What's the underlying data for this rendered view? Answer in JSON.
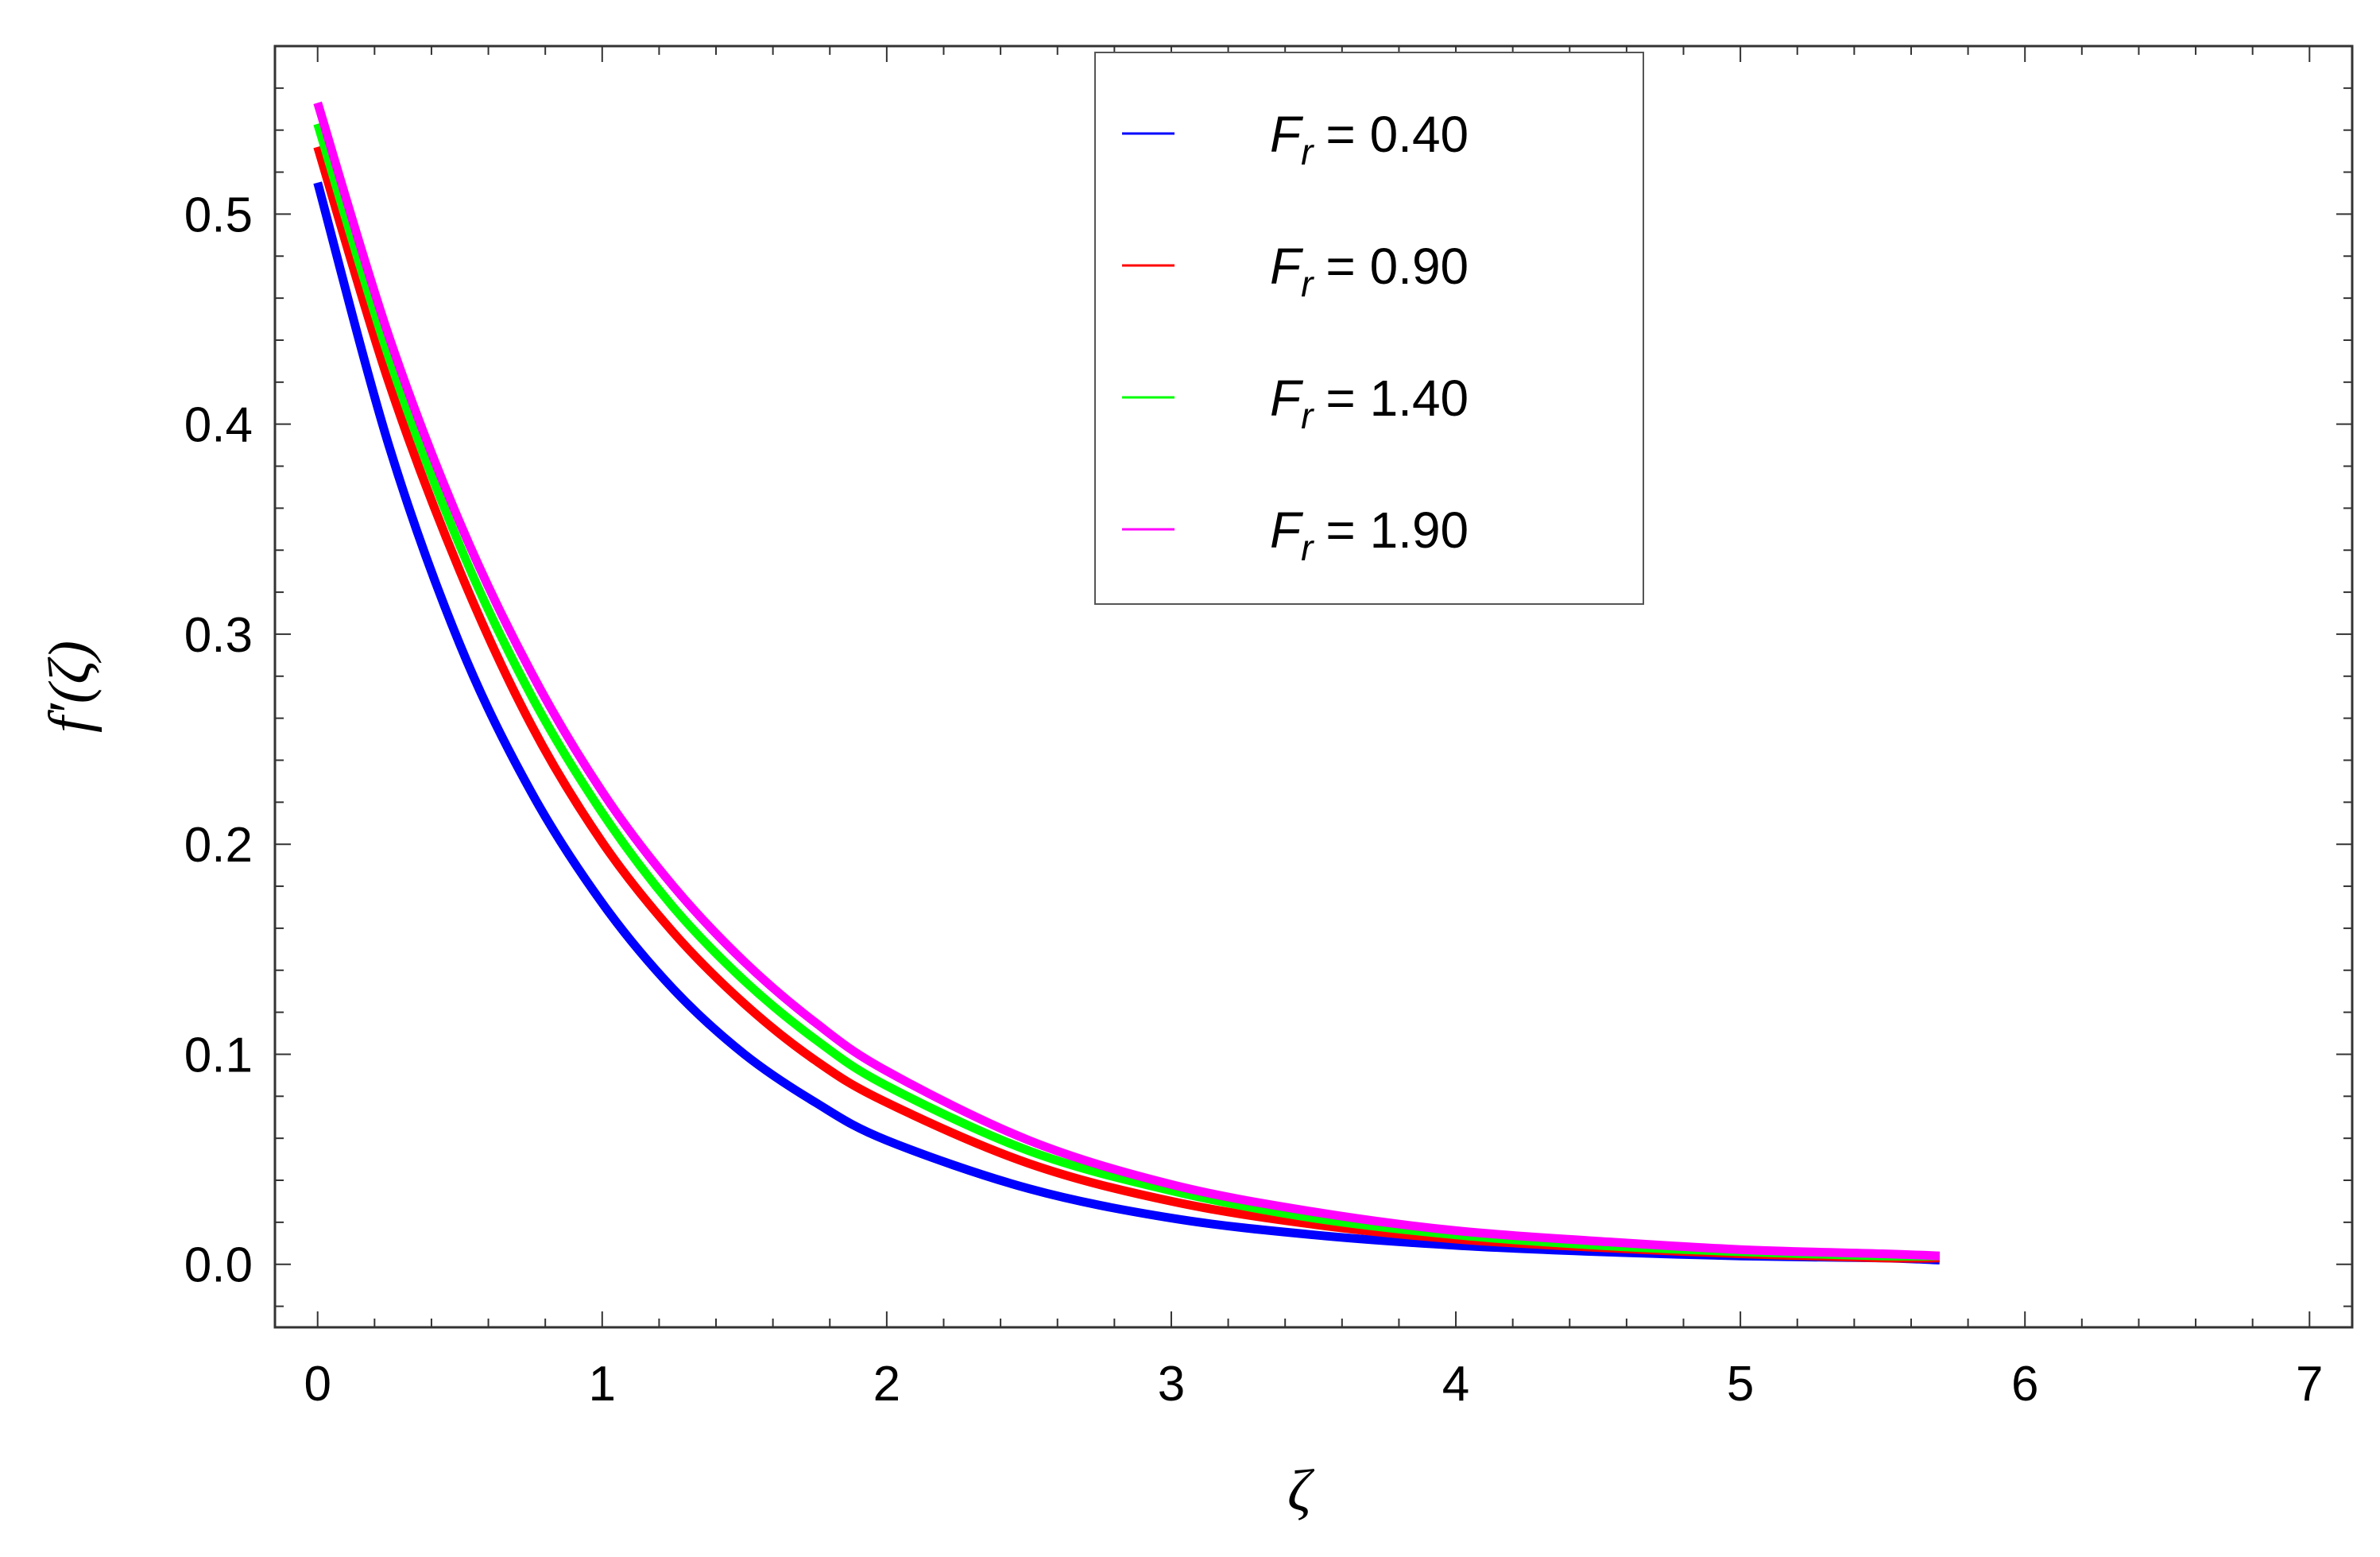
{
  "chart_data": {
    "type": "line",
    "xlabel": "ζ",
    "ylabel": "f′(ζ)",
    "xlim": [
      -0.15,
      7.15
    ],
    "ylim": [
      -0.03,
      0.58
    ],
    "x_ticks": [
      "0",
      "1",
      "2",
      "3",
      "4",
      "5",
      "6",
      "7"
    ],
    "y_ticks": [
      "0.0",
      "0.1",
      "0.2",
      "0.3",
      "0.4",
      "0.5"
    ],
    "grid": false,
    "legend_position": "top-center",
    "x": [
      0.0,
      0.25,
      0.5,
      0.75,
      1.0,
      1.25,
      1.5,
      1.75,
      2.0,
      2.5,
      3.0,
      3.5,
      4.0,
      4.5,
      5.0,
      5.5,
      5.7
    ],
    "series": [
      {
        "name": "F_r = 0.40",
        "label_var": "F",
        "label_sub": "r",
        "label_value": "= 0.40",
        "color": "#0000ff",
        "values": [
          0.515,
          0.39,
          0.295,
          0.225,
          0.172,
          0.131,
          0.1,
          0.077,
          0.059,
          0.036,
          0.022,
          0.014,
          0.009,
          0.006,
          0.004,
          0.003,
          0.002
        ]
      },
      {
        "name": "F_r = 0.90",
        "label_var": "F",
        "label_sub": "r",
        "label_value": "= 0.90",
        "color": "#ff0000",
        "values": [
          0.532,
          0.42,
          0.33,
          0.257,
          0.201,
          0.158,
          0.124,
          0.097,
          0.077,
          0.048,
          0.03,
          0.019,
          0.012,
          0.008,
          0.005,
          0.003,
          0.003
        ]
      },
      {
        "name": "F_r = 1.40",
        "label_var": "F",
        "label_sub": "r",
        "label_value": "= 1.40",
        "color": "#00ff00",
        "values": [
          0.543,
          0.432,
          0.342,
          0.271,
          0.215,
          0.17,
          0.135,
          0.107,
          0.085,
          0.054,
          0.035,
          0.022,
          0.014,
          0.009,
          0.006,
          0.004,
          0.004
        ]
      },
      {
        "name": "F_r = 1.90",
        "label_var": "F",
        "label_sub": "r",
        "label_value": "= 1.90",
        "color": "#ff00ff",
        "values": [
          0.553,
          0.442,
          0.353,
          0.282,
          0.225,
          0.18,
          0.144,
          0.115,
          0.092,
          0.059,
          0.038,
          0.025,
          0.016,
          0.011,
          0.007,
          0.005,
          0.004
        ]
      }
    ]
  }
}
